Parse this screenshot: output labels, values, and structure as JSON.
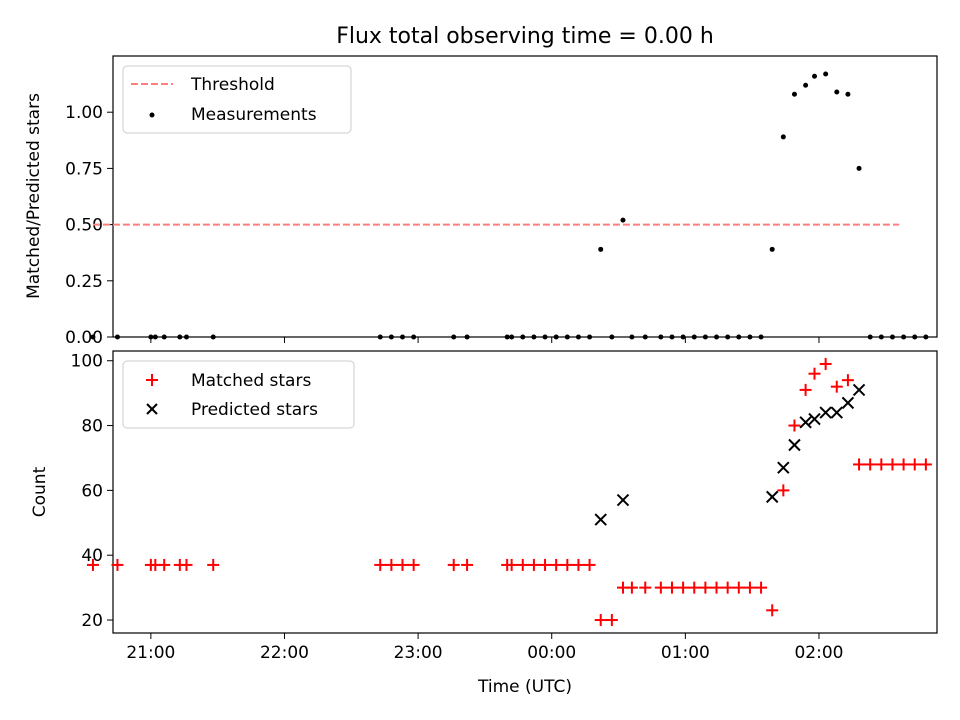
{
  "figure": {
    "title": "Flux total observing time = 0.00 h"
  },
  "chart_data": [
    {
      "type": "scatter",
      "panel": "top",
      "title": "Flux total observing time = 0.00 h",
      "ylabel": "Matched/Predicted stars",
      "xlabel": "",
      "xlim": [
        "20:43",
        "02:53"
      ],
      "ylim": [
        0,
        1.25
      ],
      "yticks": [
        0.0,
        0.25,
        0.5,
        0.75,
        1.0
      ],
      "yticklabels": [
        "0.00",
        "0.25",
        "0.50",
        "0.75",
        "1.00"
      ],
      "xticks": [
        "21:00",
        "22:00",
        "23:00",
        "00:00",
        "01:00",
        "02:00"
      ],
      "legend": {
        "position": "upper-left",
        "entries": [
          "Threshold",
          "Measurements"
        ]
      },
      "series": [
        {
          "name": "Threshold",
          "style": "dashed-line",
          "color": "#ff7f7f",
          "x": [
            "20:34",
            "02:36"
          ],
          "y": [
            0.5,
            0.5
          ]
        },
        {
          "name": "Measurements",
          "style": "dot",
          "color": "#000000",
          "x": [
            "20:34",
            "20:45",
            "21:00",
            "21:02",
            "21:06",
            "21:13",
            "21:16",
            "21:28",
            "22:43",
            "22:48",
            "22:53",
            "22:58",
            "23:16",
            "23:22",
            "23:40",
            "23:42",
            "23:47",
            "23:52",
            "23:57",
            "00:02",
            "00:07",
            "00:12",
            "00:17",
            "00:22",
            "00:27",
            "00:32",
            "00:36",
            "00:42",
            "00:49",
            "00:54",
            "00:59",
            "01:04",
            "01:09",
            "01:14",
            "01:19",
            "01:24",
            "01:29",
            "01:34",
            "01:39",
            "01:44",
            "01:49",
            "01:54",
            "01:58",
            "02:03",
            "02:08",
            "02:13",
            "02:18",
            "02:23",
            "02:28",
            "02:33",
            "02:38",
            "02:43",
            "02:48"
          ],
          "y": [
            0,
            0,
            0,
            0,
            0,
            0,
            0,
            0,
            0,
            0,
            0,
            0,
            0,
            0,
            0,
            0,
            0,
            0,
            0,
            0,
            0,
            0,
            0,
            0.39,
            0,
            0.52,
            0,
            0,
            0,
            0,
            0,
            0,
            0,
            0,
            0,
            0,
            0,
            0,
            0.39,
            0.89,
            1.08,
            1.12,
            1.16,
            1.17,
            1.09,
            1.08,
            0.75,
            0,
            0,
            0,
            0,
            0,
            0
          ]
        }
      ]
    },
    {
      "type": "scatter",
      "panel": "bottom",
      "ylabel": "Count",
      "xlabel": "Time (UTC)",
      "xlim": [
        "20:43",
        "02:53"
      ],
      "ylim": [
        16,
        103
      ],
      "yticks": [
        20,
        40,
        60,
        80,
        100
      ],
      "yticklabels": [
        "20",
        "40",
        "60",
        "80",
        "100"
      ],
      "xticks": [
        "21:00",
        "22:00",
        "23:00",
        "00:00",
        "01:00",
        "02:00"
      ],
      "xticklabels": [
        "21:00",
        "22:00",
        "23:00",
        "00:00",
        "01:00",
        "02:00"
      ],
      "legend": {
        "position": "upper-left",
        "entries": [
          "Matched stars",
          "Predicted stars"
        ]
      },
      "series": [
        {
          "name": "Matched stars",
          "style": "plus",
          "color": "#ff0000",
          "x": [
            "20:34",
            "20:45",
            "21:00",
            "21:02",
            "21:06",
            "21:13",
            "21:16",
            "21:28",
            "22:43",
            "22:48",
            "22:53",
            "22:58",
            "23:16",
            "23:22",
            "23:40",
            "23:42",
            "23:47",
            "23:52",
            "23:57",
            "00:02",
            "00:07",
            "00:12",
            "00:17",
            "00:22",
            "00:27",
            "00:32",
            "00:36",
            "00:42",
            "00:49",
            "00:54",
            "00:59",
            "01:04",
            "01:09",
            "01:14",
            "01:19",
            "01:24",
            "01:29",
            "01:34",
            "01:39",
            "01:44",
            "01:49",
            "01:54",
            "01:58",
            "02:03",
            "02:08",
            "02:13",
            "02:18",
            "02:23",
            "02:28",
            "02:33",
            "02:38",
            "02:43",
            "02:48"
          ],
          "y": [
            37,
            37,
            37,
            37,
            37,
            37,
            37,
            37,
            37,
            37,
            37,
            37,
            37,
            37,
            37,
            37,
            37,
            37,
            37,
            37,
            37,
            37,
            37,
            20,
            20,
            30,
            30,
            30,
            30,
            30,
            30,
            30,
            30,
            30,
            30,
            30,
            30,
            30,
            23,
            60,
            80,
            91,
            96,
            99,
            92,
            94,
            68,
            68,
            68,
            68,
            68,
            68,
            68
          ]
        },
        {
          "name": "Predicted stars",
          "style": "x",
          "color": "#000000",
          "x": [
            "00:22",
            "00:32",
            "01:39",
            "01:44",
            "01:49",
            "01:54",
            "01:58",
            "02:03",
            "02:08",
            "02:13",
            "02:18"
          ],
          "y": [
            51,
            57,
            58,
            67,
            74,
            81,
            82,
            84,
            84,
            87,
            91
          ]
        }
      ]
    }
  ]
}
